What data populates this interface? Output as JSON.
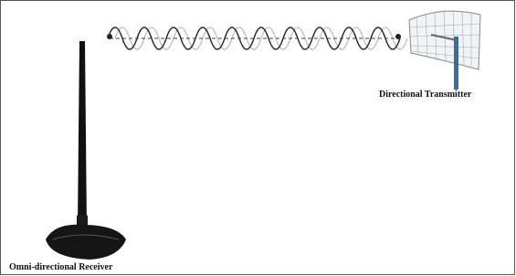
{
  "labels": {
    "transmitter": "Directional Transmitter",
    "receiver": "Omni-directional Receiver"
  }
}
